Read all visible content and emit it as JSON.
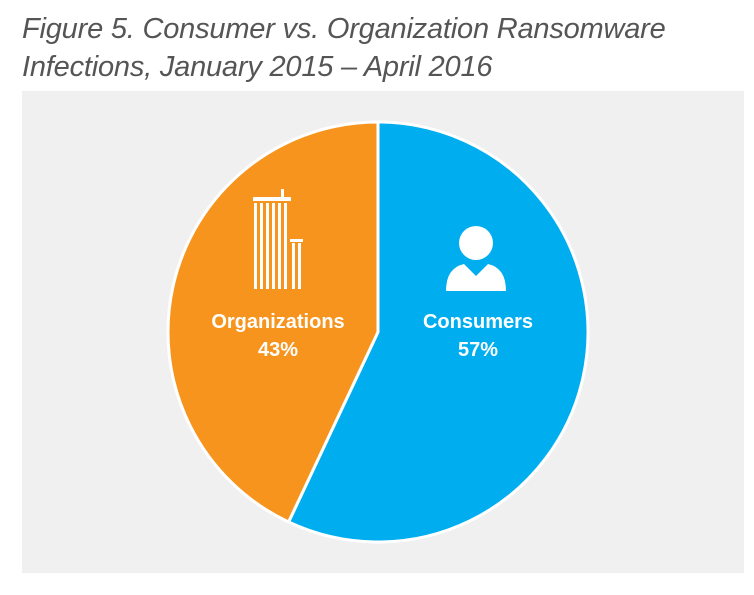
{
  "figure": {
    "title_line1": "Figure 5. Consumer vs. Organization Ransomware",
    "title_line2": "Infections, January 2015 – April 2016"
  },
  "chart_data": {
    "type": "pie",
    "title": "Figure 5. Consumer vs. Organization Ransomware Infections, January 2015 – April 2016",
    "slices": [
      {
        "label": "Consumers",
        "value": 57,
        "value_label": "57%",
        "color": "#00aeef",
        "icon": "person-icon"
      },
      {
        "label": "Organizations",
        "value": 43,
        "value_label": "43%",
        "color": "#f7941d",
        "icon": "building-icon"
      }
    ],
    "start_angle_deg": 0,
    "direction": "clockwise",
    "legend": "none"
  }
}
